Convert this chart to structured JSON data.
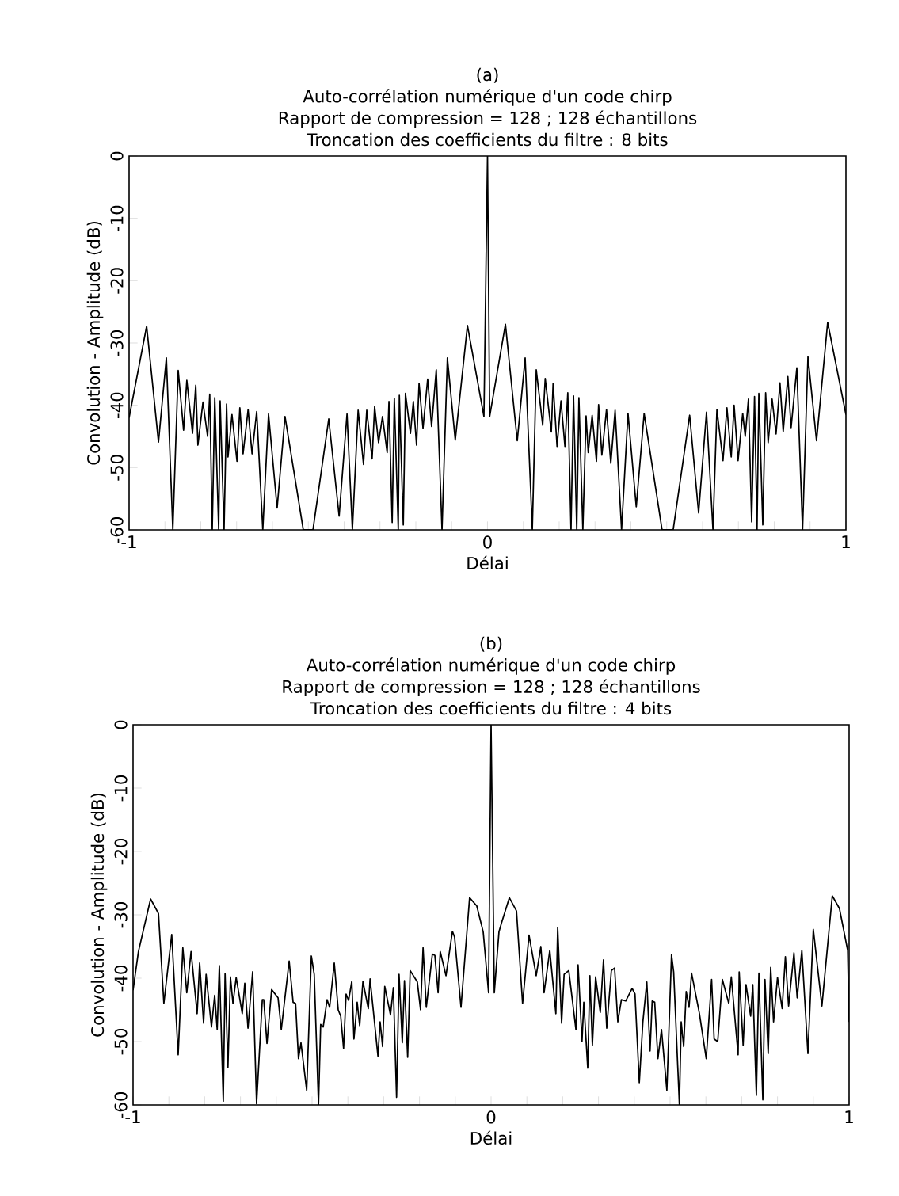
{
  "chart_data": [
    {
      "type": "line",
      "title": "(a)",
      "subtitle": "Auto-corrélation numérique d'un code chirp",
      "annotations": [
        "Rapport de compression = 128 ; 128 échantillons",
        "Troncation des coefficients du filtre : 8 bits"
      ],
      "xlabel": "Délai",
      "ylabel": "Convolution - Amplitude (dB)",
      "color": "#000000",
      "xlim": [
        -1,
        1
      ],
      "ylim": [
        -60,
        0
      ],
      "xticks": [
        -1,
        {
          "value": -0.9,
          "label": null
        },
        {
          "value": -0.8,
          "label": null
        },
        {
          "value": -0.7,
          "label": null
        },
        {
          "value": -0.6,
          "label": null
        },
        {
          "value": -0.5,
          "label": null
        },
        {
          "value": -0.4,
          "label": null
        },
        {
          "value": -0.3,
          "label": null
        },
        {
          "value": -0.2,
          "label": null
        },
        {
          "value": -0.1,
          "label": null
        },
        0,
        {
          "value": 0.1,
          "label": null
        },
        {
          "value": 0.2,
          "label": null
        },
        {
          "value": 0.3,
          "label": null
        },
        {
          "value": 0.4,
          "label": null
        },
        {
          "value": 0.5,
          "label": null
        },
        {
          "value": 0.6,
          "label": null
        },
        {
          "value": 0.7,
          "label": null
        },
        {
          "value": 0.8,
          "label": null
        },
        {
          "value": 0.9,
          "label": null
        },
        1
      ],
      "yticks": [
        -60,
        -50,
        -40,
        -30,
        -20,
        -10,
        0
      ],
      "x": [
        -1.0,
        -0.951,
        -0.918,
        -0.896,
        -0.878,
        -0.863,
        -0.848,
        -0.839,
        -0.823,
        -0.814,
        -0.808,
        -0.794,
        -0.781,
        -0.775,
        -0.768,
        -0.761,
        -0.75,
        -0.746,
        -0.735,
        -0.728,
        -0.724,
        -0.713,
        -0.699,
        -0.691,
        -0.682,
        -0.668,
        -0.657,
        -0.644,
        -0.627,
        -0.611,
        -0.587,
        -0.565,
        -0.514,
        -0.487,
        -0.443,
        -0.414,
        -0.392,
        -0.377,
        -0.361,
        -0.346,
        -0.337,
        -0.322,
        -0.315,
        -0.304,
        -0.293,
        -0.28,
        -0.275,
        -0.266,
        -0.26,
        -0.249,
        -0.246,
        -0.235,
        -0.229,
        -0.215,
        -0.207,
        -0.198,
        -0.191,
        -0.18,
        -0.167,
        -0.156,
        -0.143,
        -0.127,
        -0.112,
        -0.09,
        -0.056,
        -0.01,
        0.0,
        0.006,
        0.05,
        0.083,
        0.105,
        0.125,
        0.136,
        0.154,
        0.161,
        0.178,
        0.183,
        0.194,
        0.205,
        0.216,
        0.224,
        0.233,
        0.24,
        0.249,
        0.255,
        0.266,
        0.275,
        0.281,
        0.292,
        0.304,
        0.31,
        0.319,
        0.332,
        0.344,
        0.356,
        0.374,
        0.392,
        0.415,
        0.437,
        0.487,
        0.518,
        0.564,
        0.589,
        0.611,
        0.629,
        0.64,
        0.657,
        0.668,
        0.68,
        0.688,
        0.699,
        0.712,
        0.719,
        0.728,
        0.737,
        0.745,
        0.752,
        0.757,
        0.768,
        0.776,
        0.783,
        0.794,
        0.805,
        0.816,
        0.825,
        0.838,
        0.847,
        0.863,
        0.879,
        0.894,
        0.918,
        0.949,
        1.0
      ],
      "values": [
        -42,
        -27.3,
        -45.9,
        -32.4,
        -60,
        -34.4,
        -44,
        -36,
        -44.5,
        -36.8,
        -46.4,
        -39.5,
        -45,
        -38.2,
        -60,
        -38.8,
        -60,
        -39.3,
        -60,
        -39.8,
        -48.3,
        -41.5,
        -49,
        -40.4,
        -47.8,
        -40.7,
        -47.8,
        -41,
        -60,
        -41.4,
        -56.5,
        -41.8,
        -60,
        -60,
        -42.2,
        -57.8,
        -41.4,
        -60,
        -40.8,
        -49.5,
        -40.8,
        -48.6,
        -40.2,
        -46,
        -41.8,
        -47.6,
        -39.4,
        -58.8,
        -38.9,
        -60,
        -38.4,
        -59.2,
        -38.1,
        -44.5,
        -39.4,
        -46.4,
        -36.5,
        -43.7,
        -35.8,
        -43.4,
        -34.3,
        -60,
        -32.4,
        -45.6,
        -27.2,
        -41.8,
        0,
        -41.8,
        -27,
        -45.7,
        -32.4,
        -60,
        -34.3,
        -43.2,
        -35.7,
        -44.3,
        -36.5,
        -46.6,
        -39.3,
        -46.6,
        -38,
        -60,
        -38.5,
        -60,
        -38.8,
        -60,
        -41.7,
        -47.6,
        -41.6,
        -49,
        -39.9,
        -48,
        -40.7,
        -49.3,
        -40.8,
        -60,
        -41.3,
        -56.3,
        -41.3,
        -60,
        -60,
        -41.6,
        -57.3,
        -41.1,
        -60,
        -40.7,
        -48.9,
        -40.4,
        -48.3,
        -40,
        -48.9,
        -41.3,
        -45,
        -39,
        -58.7,
        -38.6,
        -60,
        -38.1,
        -59.2,
        -38,
        -46,
        -39,
        -44.6,
        -36.4,
        -44.2,
        -35.4,
        -43.6,
        -34,
        -60,
        -32.2,
        -45.7,
        -26.7,
        -41.5
      ]
    },
    {
      "type": "line",
      "title": "(b)",
      "subtitle": "Auto-corrélation numérique d'un code chirp",
      "annotations": [
        "Rapport de compression = 128 ; 128 échantillons",
        "Troncation des coefficients du filtre : 4 bits"
      ],
      "xlabel": "Délai",
      "ylabel": "Convolution - Amplitude (dB)",
      "color": "#000000",
      "xlim": [
        -1,
        1
      ],
      "ylim": [
        -60,
        0
      ],
      "xticks": [
        -1,
        {
          "value": -0.9,
          "label": null
        },
        {
          "value": -0.8,
          "label": null
        },
        {
          "value": -0.7,
          "label": null
        },
        {
          "value": -0.6,
          "label": null
        },
        {
          "value": -0.5,
          "label": null
        },
        {
          "value": -0.4,
          "label": null
        },
        {
          "value": -0.3,
          "label": null
        },
        {
          "value": -0.2,
          "label": null
        },
        {
          "value": -0.1,
          "label": null
        },
        0,
        {
          "value": 0.1,
          "label": null
        },
        {
          "value": 0.2,
          "label": null
        },
        {
          "value": 0.3,
          "label": null
        },
        {
          "value": 0.4,
          "label": null
        },
        {
          "value": 0.5,
          "label": null
        },
        {
          "value": 0.6,
          "label": null
        },
        {
          "value": 0.7,
          "label": null
        },
        {
          "value": 0.8,
          "label": null
        },
        {
          "value": 0.9,
          "label": null
        },
        1
      ],
      "yticks": [
        -60,
        -50,
        -40,
        -30,
        -20,
        -10,
        0
      ],
      "x": [
        -1.0,
        -0.985,
        -0.951,
        -0.929,
        -0.914,
        -0.892,
        -0.874,
        -0.861,
        -0.85,
        -0.838,
        -0.821,
        -0.814,
        -0.803,
        -0.796,
        -0.781,
        -0.772,
        -0.765,
        -0.759,
        -0.748,
        -0.743,
        -0.735,
        -0.728,
        -0.721,
        -0.712,
        -0.695,
        -0.688,
        -0.679,
        -0.666,
        -0.655,
        -0.639,
        -0.635,
        -0.626,
        -0.613,
        -0.595,
        -0.586,
        -0.564,
        -0.553,
        -0.546,
        -0.538,
        -0.531,
        -0.515,
        -0.502,
        -0.494,
        -0.482,
        -0.476,
        -0.469,
        -0.458,
        -0.451,
        -0.438,
        -0.427,
        -0.42,
        -0.412,
        -0.405,
        -0.398,
        -0.389,
        -0.383,
        -0.374,
        -0.367,
        -0.358,
        -0.343,
        -0.338,
        -0.316,
        -0.31,
        -0.303,
        -0.297,
        -0.281,
        -0.273,
        -0.264,
        -0.257,
        -0.248,
        -0.242,
        -0.233,
        -0.226,
        -0.206,
        -0.197,
        -0.19,
        -0.181,
        -0.164,
        -0.157,
        -0.148,
        -0.142,
        -0.126,
        -0.108,
        -0.102,
        -0.084,
        -0.06,
        -0.04,
        -0.022,
        -0.007,
        0.0,
        0.009,
        0.022,
        0.029,
        0.051,
        0.071,
        0.088,
        0.106,
        0.126,
        0.139,
        0.148,
        0.164,
        0.181,
        0.186,
        0.197,
        0.204,
        0.217,
        0.237,
        0.243,
        0.254,
        0.259,
        0.27,
        0.276,
        0.283,
        0.292,
        0.305,
        0.314,
        0.323,
        0.336,
        0.345,
        0.354,
        0.364,
        0.376,
        0.394,
        0.402,
        0.414,
        0.424,
        0.435,
        0.444,
        0.45,
        0.457,
        0.466,
        0.476,
        0.491,
        0.504,
        0.51,
        0.526,
        0.531,
        0.538,
        0.545,
        0.553,
        0.56,
        0.582,
        0.601,
        0.616,
        0.623,
        0.633,
        0.646,
        0.664,
        0.671,
        0.69,
        0.693,
        0.704,
        0.712,
        0.725,
        0.731,
        0.741,
        0.748,
        0.759,
        0.765,
        0.774,
        0.781,
        0.789,
        0.8,
        0.813,
        0.822,
        0.831,
        0.846,
        0.855,
        0.868,
        0.885,
        0.9,
        0.924,
        0.953,
        0.973,
        0.996,
        1.0
      ],
      "values": [
        -41.9,
        -35.8,
        -27.5,
        -29.8,
        -44,
        -33.1,
        -52.1,
        -35.2,
        -42.3,
        -35.8,
        -45.6,
        -37.6,
        -47.1,
        -39.4,
        -47.7,
        -42.7,
        -48.1,
        -38,
        -59.4,
        -39.3,
        -54.1,
        -39.8,
        -44,
        -39.9,
        -45.6,
        -40.8,
        -47.9,
        -39,
        -59.8,
        -43.4,
        -43.4,
        -50.3,
        -41.8,
        -43.1,
        -48.1,
        -37.3,
        -43.8,
        -44,
        -52.7,
        -50.2,
        -57.7,
        -36.5,
        -39.4,
        -60,
        -47.3,
        -47.7,
        -43.4,
        -44.6,
        -37.6,
        -45,
        -46,
        -51.1,
        -42.5,
        -43.5,
        -40.5,
        -49.6,
        -43.8,
        -47.5,
        -40.5,
        -44.8,
        -40.1,
        -52.3,
        -46.9,
        -50.8,
        -41.3,
        -45.8,
        -41.5,
        -58.8,
        -39.4,
        -50.2,
        -40.4,
        -52.5,
        -38.8,
        -40.6,
        -45,
        -35.2,
        -44.6,
        -36.2,
        -36.4,
        -42.3,
        -35.8,
        -39.6,
        -32.6,
        -33.5,
        -44.6,
        -27.3,
        -28.6,
        -32.7,
        -42.3,
        0,
        -42.3,
        -32.7,
        -31.3,
        -27.3,
        -29.4,
        -44,
        -33.2,
        -39.6,
        -35,
        -42.3,
        -35.6,
        -45.6,
        -32,
        -47.1,
        -39.4,
        -38.8,
        -48.1,
        -37.9,
        -50,
        -43.8,
        -54.2,
        -39.6,
        -50.6,
        -39.8,
        -45.4,
        -37.1,
        -47.9,
        -38.8,
        -38.4,
        -46.9,
        -43.4,
        -43.6,
        -41.6,
        -42.5,
        -56.5,
        -46.9,
        -40.6,
        -51.5,
        -43.6,
        -43.8,
        -52.7,
        -48.1,
        -57.7,
        -36.3,
        -39,
        -60,
        -46.9,
        -50.8,
        -42.1,
        -44.6,
        -39.2,
        -45.6,
        -52.7,
        -40.2,
        -49.6,
        -50,
        -40.2,
        -44,
        -39.8,
        -52.1,
        -39,
        -50.6,
        -41,
        -46,
        -41,
        -58.5,
        -39.2,
        -59.2,
        -40.2,
        -51.9,
        -38.3,
        -46.9,
        -39.9,
        -44.8,
        -36.6,
        -44.4,
        -36,
        -43.1,
        -35.6,
        -51.9,
        -32.3,
        -44.4,
        -27,
        -29,
        -35.6,
        -46.9
      ]
    }
  ]
}
